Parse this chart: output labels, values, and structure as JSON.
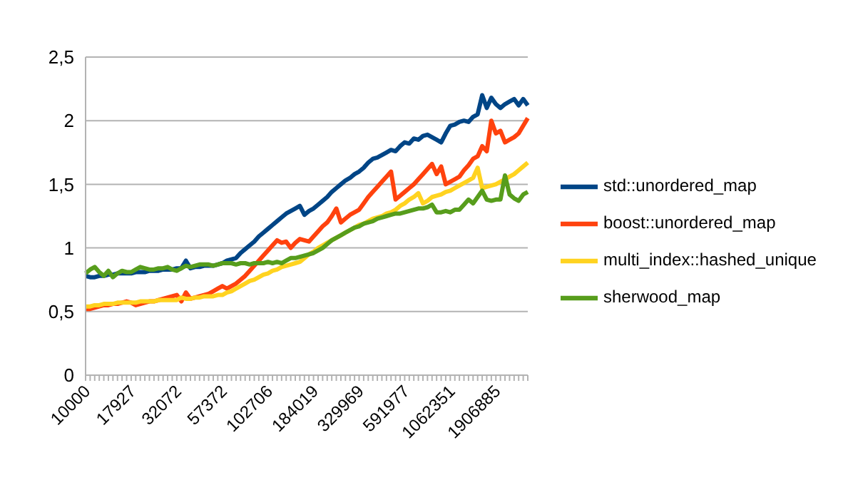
{
  "chart_data": {
    "type": "line",
    "categories": [
      "10000",
      null,
      null,
      null,
      null,
      null,
      null,
      null,
      null,
      null,
      "17927",
      null,
      null,
      null,
      null,
      null,
      null,
      null,
      null,
      null,
      "32072",
      null,
      null,
      null,
      null,
      null,
      null,
      null,
      null,
      null,
      "57372",
      null,
      null,
      null,
      null,
      null,
      null,
      null,
      null,
      null,
      "102706",
      null,
      null,
      null,
      null,
      null,
      null,
      null,
      null,
      null,
      "184019",
      null,
      null,
      null,
      null,
      null,
      null,
      null,
      null,
      null,
      "329969",
      null,
      null,
      null,
      null,
      null,
      null,
      null,
      null,
      null,
      "591977",
      null,
      null,
      null,
      null,
      null,
      null,
      null,
      null,
      null,
      "1062351",
      null,
      null,
      null,
      null,
      null,
      null,
      null,
      null,
      null,
      "1906885",
      null,
      null,
      null,
      null,
      null,
      null,
      null
    ],
    "series": [
      {
        "name": "std::unordered_map",
        "color": "#004586",
        "values": [
          0.78,
          0.77,
          0.77,
          0.78,
          0.78,
          0.79,
          0.79,
          0.8,
          0.8,
          0.8,
          0.8,
          0.81,
          0.81,
          0.81,
          0.82,
          0.82,
          0.82,
          0.83,
          0.83,
          0.83,
          0.84,
          0.84,
          0.9,
          0.84,
          0.85,
          0.85,
          0.86,
          0.86,
          0.86,
          0.87,
          0.88,
          0.9,
          0.91,
          0.92,
          0.96,
          0.99,
          1.02,
          1.05,
          1.09,
          1.12,
          1.15,
          1.18,
          1.21,
          1.24,
          1.27,
          1.29,
          1.31,
          1.33,
          1.26,
          1.29,
          1.31,
          1.34,
          1.37,
          1.4,
          1.44,
          1.47,
          1.5,
          1.53,
          1.55,
          1.58,
          1.6,
          1.63,
          1.67,
          1.7,
          1.71,
          1.73,
          1.75,
          1.77,
          1.76,
          1.8,
          1.83,
          1.82,
          1.86,
          1.85,
          1.88,
          1.89,
          1.87,
          1.85,
          1.83,
          1.9,
          1.96,
          1.97,
          1.99,
          2.0,
          1.99,
          2.03,
          2.05,
          2.2,
          2.1,
          2.18,
          2.13,
          2.1,
          2.13,
          2.15,
          2.17,
          2.12,
          2.17,
          2.12
        ]
      },
      {
        "name": "boost::unordered_map",
        "color": "#ff420e",
        "values": [
          0.52,
          0.52,
          0.53,
          0.54,
          0.55,
          0.55,
          0.56,
          0.56,
          0.57,
          0.58,
          0.57,
          0.55,
          0.56,
          0.57,
          0.58,
          0.58,
          0.59,
          0.6,
          0.61,
          0.62,
          0.63,
          0.58,
          0.65,
          0.6,
          0.61,
          0.62,
          0.63,
          0.64,
          0.66,
          0.68,
          0.7,
          0.68,
          0.7,
          0.72,
          0.75,
          0.78,
          0.82,
          0.86,
          0.9,
          0.94,
          0.98,
          1.02,
          1.06,
          1.04,
          1.05,
          1.0,
          1.04,
          1.07,
          1.06,
          1.05,
          1.09,
          1.13,
          1.17,
          1.2,
          1.25,
          1.31,
          1.2,
          1.23,
          1.26,
          1.28,
          1.3,
          1.35,
          1.4,
          1.44,
          1.48,
          1.52,
          1.56,
          1.6,
          1.38,
          1.41,
          1.44,
          1.47,
          1.5,
          1.54,
          1.58,
          1.62,
          1.66,
          1.58,
          1.64,
          1.5,
          1.52,
          1.54,
          1.56,
          1.61,
          1.65,
          1.7,
          1.72,
          1.8,
          1.76,
          2.0,
          1.9,
          1.92,
          1.83,
          1.85,
          1.87,
          1.9,
          1.96,
          2.02
        ]
      },
      {
        "name": "multi_index::hashed_unique",
        "color": "#ffd320",
        "values": [
          0.54,
          0.54,
          0.55,
          0.55,
          0.56,
          0.56,
          0.56,
          0.57,
          0.57,
          0.57,
          0.57,
          0.57,
          0.58,
          0.58,
          0.58,
          0.58,
          0.59,
          0.59,
          0.59,
          0.59,
          0.59,
          0.61,
          0.6,
          0.6,
          0.61,
          0.61,
          0.62,
          0.62,
          0.62,
          0.63,
          0.63,
          0.65,
          0.66,
          0.68,
          0.7,
          0.72,
          0.74,
          0.75,
          0.77,
          0.79,
          0.8,
          0.82,
          0.83,
          0.85,
          0.86,
          0.87,
          0.88,
          0.89,
          0.92,
          0.95,
          0.97,
          1.0,
          1.02,
          1.04,
          1.06,
          1.08,
          1.1,
          1.12,
          1.14,
          1.16,
          1.18,
          1.19,
          1.21,
          1.23,
          1.24,
          1.25,
          1.27,
          1.28,
          1.3,
          1.33,
          1.35,
          1.38,
          1.4,
          1.43,
          1.35,
          1.37,
          1.4,
          1.41,
          1.42,
          1.44,
          1.45,
          1.47,
          1.49,
          1.51,
          1.53,
          1.55,
          1.63,
          1.47,
          1.48,
          1.49,
          1.5,
          1.52,
          1.54,
          1.56,
          1.58,
          1.61,
          1.64,
          1.67
        ]
      },
      {
        "name": "sherwood_map",
        "color": "#579d1c",
        "values": [
          0.8,
          0.83,
          0.85,
          0.81,
          0.78,
          0.82,
          0.77,
          0.8,
          0.82,
          0.81,
          0.81,
          0.83,
          0.85,
          0.84,
          0.83,
          0.83,
          0.84,
          0.84,
          0.85,
          0.83,
          0.82,
          0.84,
          0.86,
          0.85,
          0.86,
          0.87,
          0.87,
          0.87,
          0.86,
          0.87,
          0.88,
          0.88,
          0.88,
          0.87,
          0.88,
          0.88,
          0.87,
          0.88,
          0.88,
          0.88,
          0.89,
          0.88,
          0.89,
          0.88,
          0.9,
          0.92,
          0.92,
          0.93,
          0.94,
          0.95,
          0.96,
          0.98,
          1.0,
          1.03,
          1.06,
          1.08,
          1.1,
          1.12,
          1.14,
          1.16,
          1.17,
          1.19,
          1.2,
          1.21,
          1.23,
          1.24,
          1.25,
          1.26,
          1.27,
          1.27,
          1.28,
          1.29,
          1.3,
          1.31,
          1.31,
          1.32,
          1.34,
          1.28,
          1.28,
          1.29,
          1.28,
          1.3,
          1.3,
          1.34,
          1.38,
          1.35,
          1.4,
          1.45,
          1.38,
          1.37,
          1.38,
          1.38,
          1.57,
          1.42,
          1.39,
          1.37,
          1.42,
          1.44
        ]
      }
    ],
    "ylim": [
      0,
      2.5
    ],
    "yticks": [
      0,
      {
        "value": 0.5,
        "label": "0,5"
      },
      1,
      {
        "value": 1.5,
        "label": "1,5"
      },
      2,
      {
        "value": 2.5,
        "label": "2,5"
      }
    ],
    "grid": "y",
    "legend": "right",
    "marker": "none",
    "line_style": "solid"
  }
}
